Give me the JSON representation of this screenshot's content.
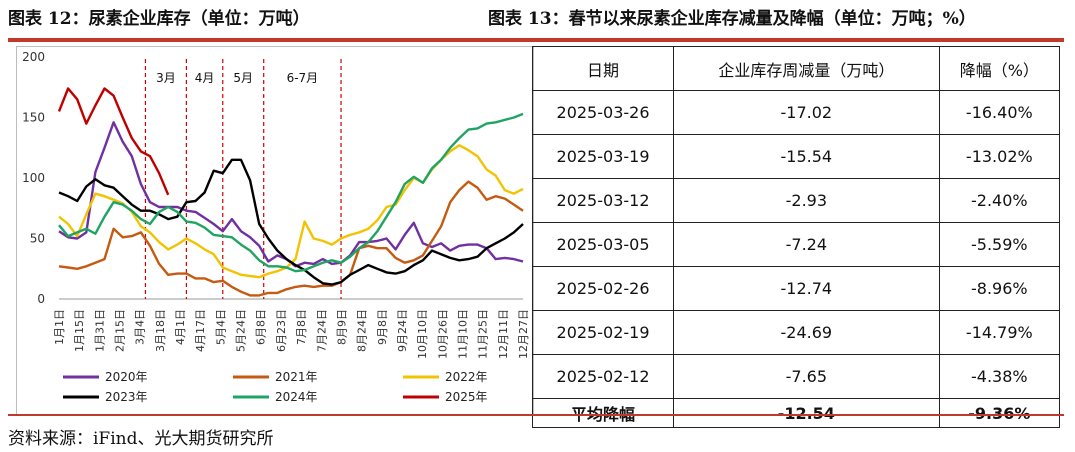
{
  "header_left": "图表 12：尿素企业库存（单位：万吨）",
  "header_right": "图表 13：春节以来尿素企业库存减量及降幅（单位：万吨；%）",
  "accent_color": "#c0392b",
  "chart_data": {
    "type": "line",
    "ylim": [
      0,
      200
    ],
    "yticks": [
      0,
      50,
      100,
      150,
      200
    ],
    "xlabels": [
      "1月1日",
      "1月15日",
      "1月31日",
      "2月15日",
      "3月4日",
      "3月18日",
      "4月1日",
      "4月17日",
      "5月4日",
      "5月24日",
      "6月8日",
      "6月23日",
      "7月8日",
      "7月24日",
      "8月9日",
      "8月24日",
      "9月8日",
      "9月24日",
      "10月10日",
      "10月26日",
      "11月10日",
      "11月25日",
      "12月11日",
      "12月27日"
    ],
    "x_count": 52,
    "period_labels": [
      {
        "label": "3月",
        "x_start": 9.5,
        "x_end": 14
      },
      {
        "label": "4月",
        "x_start": 14,
        "x_end": 18
      },
      {
        "label": "5月",
        "x_start": 18,
        "x_end": 22.5
      },
      {
        "label": "6-7月",
        "x_start": 22.5,
        "x_end": 31
      }
    ],
    "period_lines": [
      9.5,
      14,
      18,
      22.5,
      31
    ],
    "series": [
      {
        "name": "2020年",
        "color": "#7030a0",
        "values": [
          56,
          51,
          50,
          55,
          105,
          125,
          146,
          130,
          118,
          95,
          80,
          76,
          76,
          76,
          73,
          72,
          67,
          62,
          56,
          66,
          56,
          51,
          44,
          31,
          36,
          33,
          27,
          30,
          29,
          33,
          29,
          30,
          36,
          47,
          47,
          48,
          50,
          41,
          53,
          63,
          46,
          43,
          46,
          40,
          44,
          45,
          45,
          42,
          33,
          34,
          33,
          31
        ]
      },
      {
        "name": "2021年",
        "color": "#c55a11",
        "values": [
          27,
          26,
          25,
          27,
          30,
          33,
          58,
          51,
          52,
          55,
          44,
          29,
          20,
          21,
          21,
          17,
          17,
          14,
          15,
          10,
          6,
          3,
          3,
          5,
          5,
          8,
          10,
          11,
          10,
          11,
          11,
          14,
          20,
          42,
          44,
          42,
          42,
          34,
          30,
          32,
          36,
          48,
          60,
          80,
          90,
          97,
          92,
          82,
          85,
          83,
          78,
          73
        ]
      },
      {
        "name": "2022年",
        "color": "#f2c300",
        "values": [
          68,
          62,
          52,
          70,
          87,
          85,
          82,
          79,
          72,
          60,
          55,
          47,
          41,
          45,
          50,
          46,
          41,
          37,
          26,
          23,
          20,
          19,
          18,
          21,
          23,
          26,
          33,
          64,
          50,
          48,
          45,
          50,
          53,
          55,
          58,
          65,
          76,
          78,
          90,
          100,
          96,
          107,
          115,
          122,
          127,
          123,
          118,
          107,
          102,
          90,
          87,
          91
        ]
      },
      {
        "name": "2023年",
        "color": "#000000",
        "values": [
          88,
          85,
          81,
          93,
          99,
          94,
          92,
          85,
          78,
          73,
          73,
          70,
          66,
          68,
          80,
          81,
          88,
          106,
          104,
          115,
          115,
          98,
          62,
          50,
          40,
          33,
          28,
          24,
          18,
          13,
          12,
          14,
          20,
          24,
          28,
          25,
          22,
          21,
          23,
          28,
          32,
          40,
          37,
          34,
          32,
          33,
          35,
          42,
          46,
          50,
          55,
          62
        ]
      },
      {
        "name": "2024年",
        "color": "#1fa463",
        "values": [
          61,
          52,
          55,
          58,
          54,
          68,
          80,
          78,
          73,
          66,
          62,
          72,
          76,
          72,
          64,
          63,
          59,
          53,
          52,
          51,
          45,
          40,
          32,
          27,
          27,
          26,
          23,
          24,
          27,
          30,
          32,
          30,
          35,
          42,
          47,
          56,
          68,
          80,
          95,
          101,
          96,
          108,
          115,
          125,
          133,
          140,
          141,
          145,
          146,
          148,
          150,
          153
        ]
      },
      {
        "name": "2025年",
        "color": "#c00000",
        "values": [
          155,
          174,
          165,
          145,
          160,
          174,
          168,
          150,
          133,
          122,
          118,
          104,
          86
        ]
      }
    ]
  },
  "table": {
    "headers": [
      "日期",
      "企业库存周减量（万吨）",
      "降幅（%）"
    ],
    "rows": [
      [
        "2025-03-26",
        "-17.02",
        "-16.40%"
      ],
      [
        "2025-03-19",
        "-15.54",
        "-13.02%"
      ],
      [
        "2025-03-12",
        "-2.93",
        "-2.40%"
      ],
      [
        "2025-03-05",
        "-7.24",
        "-5.59%"
      ],
      [
        "2025-02-26",
        "-12.74",
        "-8.96%"
      ],
      [
        "2025-02-19",
        "-24.69",
        "-14.79%"
      ],
      [
        "2025-02-12",
        "-7.65",
        "-4.38%"
      ]
    ],
    "avg_row": [
      "平均降幅",
      "-12.54",
      "-9.36%"
    ]
  },
  "source": "资料来源：iFind、光大期货研究所"
}
